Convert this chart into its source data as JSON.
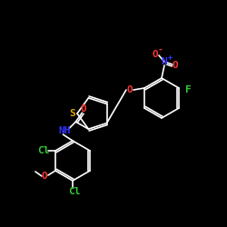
{
  "background_color": "#000000",
  "bond_color": "#ffffff",
  "atom_colors": {
    "S": "#ddaa00",
    "O": "#ff3333",
    "N": "#3333ff",
    "F": "#33cc33",
    "Cl": "#33cc33",
    "H": "#ffffff",
    "C": "#ffffff",
    "plus": "#3333ff",
    "minus": "#ff3333"
  }
}
